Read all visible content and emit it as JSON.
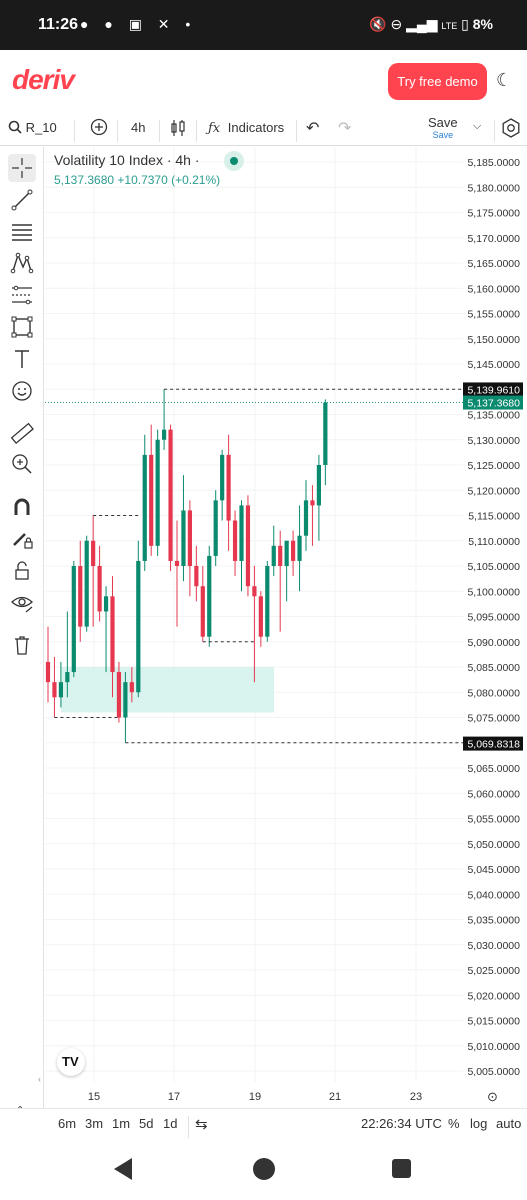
{
  "status_bar": {
    "time": "11:26",
    "battery": "8%",
    "network": "LTE"
  },
  "header": {
    "logo": "deriv",
    "demo_button": "Try free demo"
  },
  "toolbar": {
    "symbol": "R_10",
    "interval": "4h",
    "indicators": "Indicators",
    "save": "Save",
    "save_sub": "Save"
  },
  "chart_header": {
    "title": "Volatility 10 Index · 4h ·",
    "price_line": "5,137.3680  +10.7370 (+0.21%)"
  },
  "colors": {
    "up": "#0a8a6e",
    "down": "#e5384f",
    "accent": "#ff444f"
  },
  "chart_data": {
    "type": "candlestick",
    "yaxis": {
      "min": 5005,
      "max": 5185,
      "tick_step": 5,
      "tick_format": "4 decimals"
    },
    "x_ticks": [
      "15",
      "17",
      "19",
      "21",
      "23"
    ],
    "current_price": "5,137.3680",
    "price_labels": [
      {
        "text": "5,139.9610",
        "value": 5139.961,
        "style": "dark"
      },
      {
        "text": "5,137.3680",
        "value": 5137.368,
        "style": "green"
      },
      {
        "text": "5,069.8318",
        "value": 5069.8318,
        "style": "dark"
      }
    ],
    "candles": [
      {
        "o": 5086,
        "h": 5093,
        "l": 5078,
        "c": 5082
      },
      {
        "o": 5082,
        "h": 5087,
        "l": 5075,
        "c": 5079
      },
      {
        "o": 5079,
        "h": 5086,
        "l": 5077,
        "c": 5082
      },
      {
        "o": 5082,
        "h": 5096,
        "l": 5079,
        "c": 5084
      },
      {
        "o": 5084,
        "h": 5106,
        "l": 5083,
        "c": 5105
      },
      {
        "o": 5105,
        "h": 5110,
        "l": 5090,
        "c": 5093
      },
      {
        "o": 5093,
        "h": 5111,
        "l": 5092,
        "c": 5110
      },
      {
        "o": 5110,
        "h": 5115,
        "l": 5093,
        "c": 5105
      },
      {
        "o": 5105,
        "h": 5109,
        "l": 5094,
        "c": 5096
      },
      {
        "o": 5096,
        "h": 5101,
        "l": 5084,
        "c": 5099
      },
      {
        "o": 5099,
        "h": 5103,
        "l": 5079,
        "c": 5084
      },
      {
        "o": 5084,
        "h": 5086,
        "l": 5074,
        "c": 5075
      },
      {
        "o": 5075,
        "h": 5084,
        "l": 5070,
        "c": 5082
      },
      {
        "o": 5082,
        "h": 5085,
        "l": 5078,
        "c": 5080
      },
      {
        "o": 5080,
        "h": 5110,
        "l": 5079,
        "c": 5106
      },
      {
        "o": 5106,
        "h": 5131,
        "l": 5104,
        "c": 5127
      },
      {
        "o": 5127,
        "h": 5133,
        "l": 5107,
        "c": 5109
      },
      {
        "o": 5109,
        "h": 5132,
        "l": 5107,
        "c": 5130
      },
      {
        "o": 5130,
        "h": 5140,
        "l": 5128,
        "c": 5132
      },
      {
        "o": 5132,
        "h": 5133,
        "l": 5104,
        "c": 5106
      },
      {
        "o": 5106,
        "h": 5114,
        "l": 5093,
        "c": 5105
      },
      {
        "o": 5105,
        "h": 5123,
        "l": 5102,
        "c": 5116
      },
      {
        "o": 5116,
        "h": 5118,
        "l": 5099,
        "c": 5105
      },
      {
        "o": 5105,
        "h": 5109,
        "l": 5098,
        "c": 5101
      },
      {
        "o": 5101,
        "h": 5105,
        "l": 5090,
        "c": 5091
      },
      {
        "o": 5091,
        "h": 5109,
        "l": 5089,
        "c": 5107
      },
      {
        "o": 5107,
        "h": 5120,
        "l": 5105,
        "c": 5118
      },
      {
        "o": 5118,
        "h": 5128,
        "l": 5114,
        "c": 5127
      },
      {
        "o": 5127,
        "h": 5131,
        "l": 5108,
        "c": 5114
      },
      {
        "o": 5114,
        "h": 5116,
        "l": 5103,
        "c": 5106
      },
      {
        "o": 5106,
        "h": 5118,
        "l": 5100,
        "c": 5117
      },
      {
        "o": 5117,
        "h": 5119,
        "l": 5099,
        "c": 5101
      },
      {
        "o": 5101,
        "h": 5105,
        "l": 5082,
        "c": 5099
      },
      {
        "o": 5099,
        "h": 5100,
        "l": 5089,
        "c": 5091
      },
      {
        "o": 5091,
        "h": 5106,
        "l": 5090,
        "c": 5105
      },
      {
        "o": 5105,
        "h": 5113,
        "l": 5103,
        "c": 5109
      },
      {
        "o": 5109,
        "h": 5112,
        "l": 5092,
        "c": 5105
      },
      {
        "o": 5105,
        "h": 5110,
        "l": 5098,
        "c": 5110
      },
      {
        "o": 5110,
        "h": 5112,
        "l": 5103,
        "c": 5106
      },
      {
        "o": 5106,
        "h": 5117,
        "l": 5100,
        "c": 5111
      },
      {
        "o": 5111,
        "h": 5122,
        "l": 5108,
        "c": 5118
      },
      {
        "o": 5118,
        "h": 5121,
        "l": 5109,
        "c": 5117
      },
      {
        "o": 5117,
        "h": 5127,
        "l": 5110,
        "c": 5125
      },
      {
        "o": 5125,
        "h": 5138,
        "l": 5121,
        "c": 5137.368
      }
    ]
  },
  "footer": {
    "periods": [
      "6m",
      "3m",
      "1m",
      "5d",
      "1d"
    ],
    "clock": "22:26:34 UTC",
    "percent": "%",
    "log": "log",
    "auto": "auto"
  }
}
